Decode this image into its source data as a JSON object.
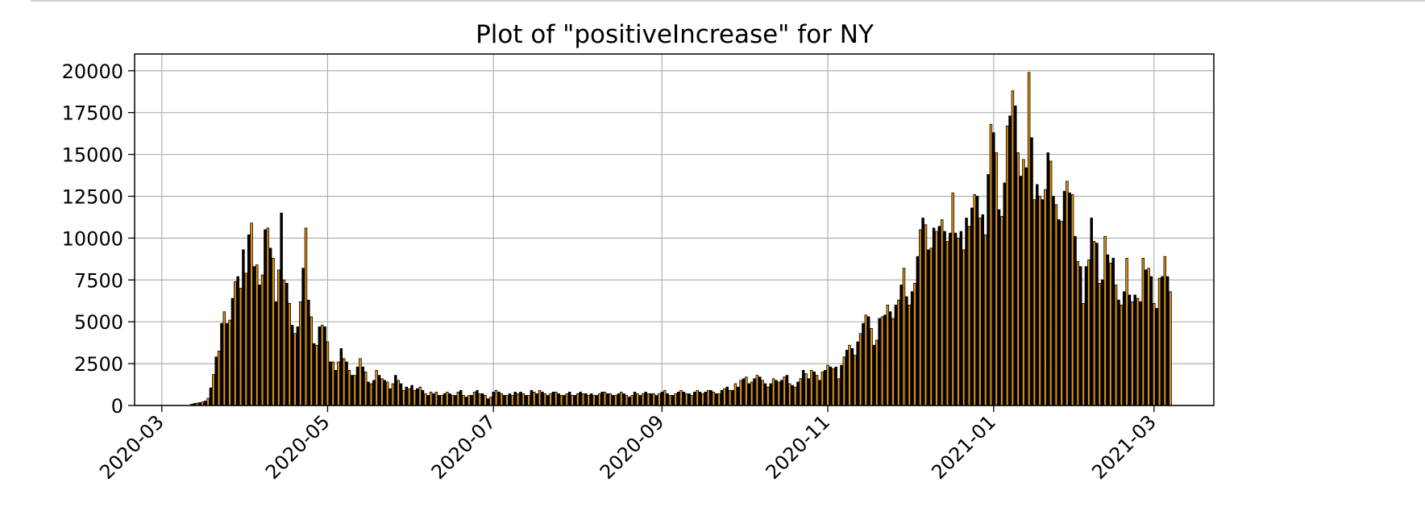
{
  "chart_data": {
    "type": "bar",
    "title": "Plot of \"positiveIncrease\" for NY",
    "xlabel": "",
    "ylabel": "",
    "x_axis": "date",
    "xlim": [
      "2020-02-20",
      "2021-03-23"
    ],
    "ylim": [
      0,
      21000
    ],
    "grid": true,
    "legend": "none",
    "x_ticks": [
      "2020-03",
      "2020-05",
      "2020-07",
      "2020-09",
      "2020-11",
      "2021-01",
      "2021-03"
    ],
    "y_ticks": [
      0,
      2500,
      5000,
      7500,
      10000,
      12500,
      15000,
      17500,
      20000
    ],
    "colors": {
      "bar_fill_a": "#000000",
      "bar_fill_b": "#e8960f",
      "bar_edge": "#000000",
      "grid": "#b0b0b0"
    },
    "series": [
      {
        "x": [
          "2020-03-01",
          "2020-03-02",
          "2020-03-03",
          "2020-03-04",
          "2020-03-05",
          "2020-03-06",
          "2020-03-07",
          "2020-03-08",
          "2020-03-09",
          "2020-03-10",
          "2020-03-11",
          "2020-03-12",
          "2020-03-13",
          "2020-03-14",
          "2020-03-15",
          "2020-03-16",
          "2020-03-17",
          "2020-03-18",
          "2020-03-19",
          "2020-03-20",
          "2020-03-21",
          "2020-03-22",
          "2020-03-23",
          "2020-03-24",
          "2020-03-25",
          "2020-03-26",
          "2020-03-27",
          "2020-03-28",
          "2020-03-29",
          "2020-03-30",
          "2020-03-31",
          "2020-04-01",
          "2020-04-02",
          "2020-04-03",
          "2020-04-04",
          "2020-04-05",
          "2020-04-06",
          "2020-04-07",
          "2020-04-08",
          "2020-04-09",
          "2020-04-10",
          "2020-04-11",
          "2020-04-12",
          "2020-04-13",
          "2020-04-14",
          "2020-04-15",
          "2020-04-16",
          "2020-04-17",
          "2020-04-18",
          "2020-04-19",
          "2020-04-20",
          "2020-04-21",
          "2020-04-22",
          "2020-04-23",
          "2020-04-24",
          "2020-04-25",
          "2020-04-26",
          "2020-04-27",
          "2020-04-28",
          "2020-04-29",
          "2020-04-30",
          "2020-05-01",
          "2020-05-02",
          "2020-05-03",
          "2020-05-04",
          "2020-05-05",
          "2020-05-06",
          "2020-05-07",
          "2020-05-08",
          "2020-05-09",
          "2020-05-10",
          "2020-05-11",
          "2020-05-12",
          "2020-05-13",
          "2020-05-14",
          "2020-05-15",
          "2020-05-16",
          "2020-05-17",
          "2020-05-18",
          "2020-05-19",
          "2020-05-20",
          "2020-05-21",
          "2020-05-22",
          "2020-05-23",
          "2020-05-24",
          "2020-05-25",
          "2020-05-26",
          "2020-05-27",
          "2020-05-28",
          "2020-05-29",
          "2020-05-30",
          "2020-05-31",
          "2020-06-01",
          "2020-06-02",
          "2020-06-03",
          "2020-06-04",
          "2020-06-05",
          "2020-06-06",
          "2020-06-07",
          "2020-06-08",
          "2020-06-09",
          "2020-06-10",
          "2020-06-11",
          "2020-06-12",
          "2020-06-13",
          "2020-06-14",
          "2020-06-15",
          "2020-06-16",
          "2020-06-17",
          "2020-06-18",
          "2020-06-19",
          "2020-06-20",
          "2020-06-21",
          "2020-06-22",
          "2020-06-23",
          "2020-06-24",
          "2020-06-25",
          "2020-06-26",
          "2020-06-27",
          "2020-06-28",
          "2020-06-29",
          "2020-06-30",
          "2020-07-01",
          "2020-07-02",
          "2020-07-03",
          "2020-07-04",
          "2020-07-05",
          "2020-07-06",
          "2020-07-07",
          "2020-07-08",
          "2020-07-09",
          "2020-07-10",
          "2020-07-11",
          "2020-07-12",
          "2020-07-13",
          "2020-07-14",
          "2020-07-15",
          "2020-07-16",
          "2020-07-17",
          "2020-07-18",
          "2020-07-19",
          "2020-07-20",
          "2020-07-21",
          "2020-07-22",
          "2020-07-23",
          "2020-07-24",
          "2020-07-25",
          "2020-07-26",
          "2020-07-27",
          "2020-07-28",
          "2020-07-29",
          "2020-07-30",
          "2020-07-31",
          "2020-08-01",
          "2020-08-02",
          "2020-08-03",
          "2020-08-04",
          "2020-08-05",
          "2020-08-06",
          "2020-08-07",
          "2020-08-08",
          "2020-08-09",
          "2020-08-10",
          "2020-08-11",
          "2020-08-12",
          "2020-08-13",
          "2020-08-14",
          "2020-08-15",
          "2020-08-16",
          "2020-08-17",
          "2020-08-18",
          "2020-08-19",
          "2020-08-20",
          "2020-08-21",
          "2020-08-22",
          "2020-08-23",
          "2020-08-24",
          "2020-08-25",
          "2020-08-26",
          "2020-08-27",
          "2020-08-28",
          "2020-08-29",
          "2020-08-30",
          "2020-08-31",
          "2020-09-01",
          "2020-09-02",
          "2020-09-03",
          "2020-09-04",
          "2020-09-05",
          "2020-09-06",
          "2020-09-07",
          "2020-09-08",
          "2020-09-09",
          "2020-09-10",
          "2020-09-11",
          "2020-09-12",
          "2020-09-13",
          "2020-09-14",
          "2020-09-15",
          "2020-09-16",
          "2020-09-17",
          "2020-09-18",
          "2020-09-19",
          "2020-09-20",
          "2020-09-21",
          "2020-09-22",
          "2020-09-23",
          "2020-09-24",
          "2020-09-25",
          "2020-09-26",
          "2020-09-27",
          "2020-09-28",
          "2020-09-29",
          "2020-09-30",
          "2020-10-01",
          "2020-10-02",
          "2020-10-03",
          "2020-10-04",
          "2020-10-05",
          "2020-10-06",
          "2020-10-07",
          "2020-10-08",
          "2020-10-09",
          "2020-10-10",
          "2020-10-11",
          "2020-10-12",
          "2020-10-13",
          "2020-10-14",
          "2020-10-15",
          "2020-10-16",
          "2020-10-17",
          "2020-10-18",
          "2020-10-19",
          "2020-10-20",
          "2020-10-21",
          "2020-10-22",
          "2020-10-23",
          "2020-10-24",
          "2020-10-25",
          "2020-10-26",
          "2020-10-27",
          "2020-10-28",
          "2020-10-29",
          "2020-10-30",
          "2020-10-31",
          "2020-11-01",
          "2020-11-02",
          "2020-11-03",
          "2020-11-04",
          "2020-11-05",
          "2020-11-06",
          "2020-11-07",
          "2020-11-08",
          "2020-11-09",
          "2020-11-10",
          "2020-11-11",
          "2020-11-12",
          "2020-11-13",
          "2020-11-14",
          "2020-11-15",
          "2020-11-16",
          "2020-11-17",
          "2020-11-18",
          "2020-11-19",
          "2020-11-20",
          "2020-11-21",
          "2020-11-22",
          "2020-11-23",
          "2020-11-24",
          "2020-11-25",
          "2020-11-26",
          "2020-11-27",
          "2020-11-28",
          "2020-11-29",
          "2020-11-30",
          "2020-12-01",
          "2020-12-02",
          "2020-12-03",
          "2020-12-04",
          "2020-12-05",
          "2020-12-06",
          "2020-12-07",
          "2020-12-08",
          "2020-12-09",
          "2020-12-10",
          "2020-12-11",
          "2020-12-12",
          "2020-12-13",
          "2020-12-14",
          "2020-12-15",
          "2020-12-16",
          "2020-12-17",
          "2020-12-18",
          "2020-12-19",
          "2020-12-20",
          "2020-12-21",
          "2020-12-22",
          "2020-12-23",
          "2020-12-24",
          "2020-12-25",
          "2020-12-26",
          "2020-12-27",
          "2020-12-28",
          "2020-12-29",
          "2020-12-30",
          "2020-12-31",
          "2021-01-01",
          "2021-01-02",
          "2021-01-03",
          "2021-01-04",
          "2021-01-05",
          "2021-01-06",
          "2021-01-07",
          "2021-01-08",
          "2021-01-09",
          "2021-01-10",
          "2021-01-11",
          "2021-01-12",
          "2021-01-13",
          "2021-01-14",
          "2021-01-15",
          "2021-01-16",
          "2021-01-17",
          "2021-01-18",
          "2021-01-19",
          "2021-01-20",
          "2021-01-21",
          "2021-01-22",
          "2021-01-23",
          "2021-01-24",
          "2021-01-25",
          "2021-01-26",
          "2021-01-27",
          "2021-01-28",
          "2021-01-29",
          "2021-01-30",
          "2021-01-31",
          "2021-02-01",
          "2021-02-02",
          "2021-02-03",
          "2021-02-04",
          "2021-02-05",
          "2021-02-06",
          "2021-02-07",
          "2021-02-08",
          "2021-02-09",
          "2021-02-10",
          "2021-02-11",
          "2021-02-12",
          "2021-02-13",
          "2021-02-14",
          "2021-02-15",
          "2021-02-16",
          "2021-02-17",
          "2021-02-18",
          "2021-02-19",
          "2021-02-20",
          "2021-02-21",
          "2021-02-22",
          "2021-02-23",
          "2021-02-24",
          "2021-02-25",
          "2021-02-26",
          "2021-02-27",
          "2021-02-28",
          "2021-03-01",
          "2021-03-02",
          "2021-03-03",
          "2021-03-04",
          "2021-03-05",
          "2021-03-06",
          "2021-03-07"
        ],
        "values": [
          0,
          0,
          0,
          0,
          0,
          0,
          0,
          0,
          0,
          0,
          0,
          80,
          120,
          140,
          170,
          210,
          260,
          430,
          1050,
          1850,
          2900,
          3250,
          4900,
          5600,
          4900,
          5100,
          6400,
          7400,
          7700,
          7000,
          9300,
          7900,
          10200,
          10900,
          8300,
          8400,
          7200,
          7800,
          10500,
          10600,
          9400,
          8800,
          6200,
          8100,
          11500,
          7500,
          7300,
          6100,
          4800,
          4300,
          4700,
          6200,
          8200,
          10600,
          6300,
          5300,
          3700,
          3600,
          4700,
          4800,
          4700,
          3800,
          2600,
          2600,
          2100,
          2600,
          3400,
          2800,
          2600,
          2100,
          1800,
          1800,
          2300,
          2800,
          2300,
          2000,
          1400,
          1300,
          1500,
          2100,
          1800,
          1600,
          1500,
          1400,
          1000,
          1300,
          1800,
          1500,
          1300,
          900,
          1100,
          1000,
          1200,
          900,
          1000,
          1100,
          900,
          700,
          600,
          800,
          700,
          800,
          600,
          600,
          700,
          800,
          700,
          600,
          600,
          800,
          900,
          600,
          500,
          600,
          600,
          800,
          900,
          700,
          700,
          600,
          400,
          500,
          800,
          900,
          800,
          700,
          600,
          600,
          700,
          600,
          800,
          700,
          800,
          700,
          600,
          600,
          900,
          800,
          700,
          900,
          800,
          700,
          600,
          700,
          800,
          800,
          700,
          600,
          600,
          700,
          800,
          600,
          600,
          700,
          800,
          700,
          700,
          600,
          700,
          600,
          600,
          700,
          800,
          800,
          700,
          700,
          600,
          600,
          700,
          800,
          700,
          600,
          500,
          600,
          800,
          700,
          600,
          700,
          800,
          700,
          700,
          700,
          600,
          700,
          800,
          900,
          700,
          600,
          600,
          700,
          800,
          900,
          800,
          700,
          700,
          600,
          800,
          900,
          800,
          700,
          800,
          900,
          900,
          800,
          700,
          700,
          900,
          1000,
          1100,
          900,
          900,
          1300,
          1100,
          1500,
          1600,
          1700,
          1300,
          1400,
          1600,
          1800,
          1700,
          1500,
          1300,
          1100,
          1300,
          1600,
          1500,
          1400,
          1500,
          1700,
          1800,
          1300,
          1200,
          1100,
          1400,
          1600,
          2100,
          1900,
          1600,
          2100,
          2000,
          1800,
          1500,
          2000,
          2100,
          2400,
          2300,
          2200,
          2300,
          1600,
          2400,
          2900,
          3300,
          3600,
          3400,
          3000,
          3800,
          4300,
          4900,
          5400,
          5300,
          4600,
          3600,
          3900,
          5200,
          5300,
          5400,
          6000,
          5600,
          5200,
          6000,
          6300,
          7200,
          8200,
          6500,
          6000,
          6800,
          7300,
          8900,
          10500,
          11200,
          10800,
          9300,
          9400,
          10600,
          10400,
          10700,
          11100,
          10400,
          9800,
          10300,
          12700,
          10300,
          10000,
          10400,
          9300,
          11200,
          10700,
          11800,
          12600,
          12500,
          11200,
          11400,
          10200,
          13800,
          16800,
          16300,
          15100,
          11700,
          11300,
          13300,
          16700,
          17300,
          18800,
          17900,
          15100,
          13700,
          14700,
          14200,
          19900,
          16000,
          12300,
          13200,
          12500,
          12300,
          12900,
          15100,
          14600,
          12500,
          12000,
          11100,
          11000,
          12800,
          13400,
          12700,
          12600,
          10100,
          8600,
          8300,
          6100,
          8300,
          8700,
          11200,
          9800,
          9700,
          7300,
          7500,
          10100,
          9000,
          8500,
          8800,
          7200,
          6300,
          6000,
          6800,
          8800,
          6600,
          6200,
          6600,
          6400,
          6200,
          8800,
          8100,
          8200,
          7700,
          6100,
          5800,
          7600,
          7700,
          8900,
          7700,
          6800
        ]
      }
    ]
  }
}
